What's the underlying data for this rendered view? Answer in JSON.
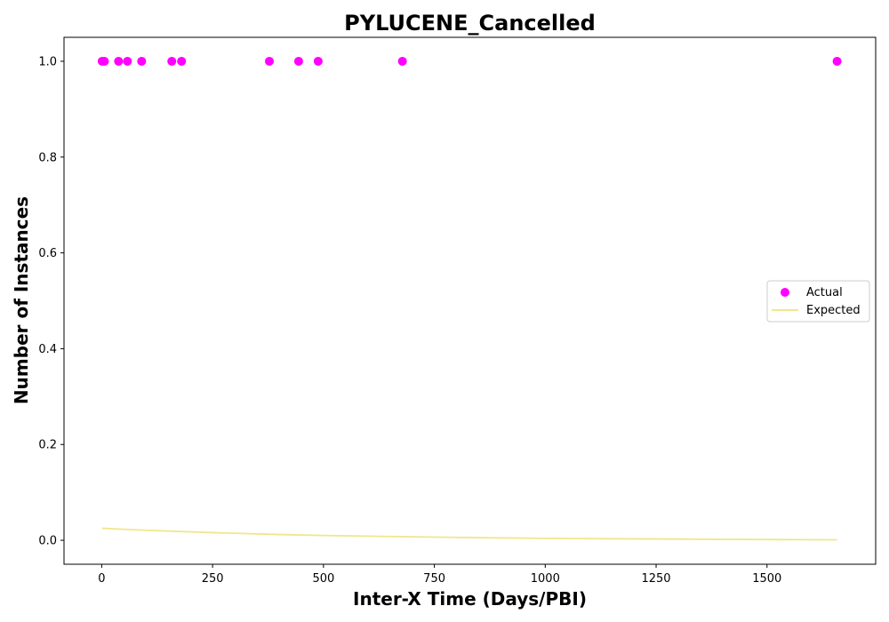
{
  "chart_data": {
    "type": "scatter",
    "title": "PYLUCENE_Cancelled",
    "xlabel": "Inter-X Time (Days/PBI)",
    "ylabel": "Number of Instances",
    "xlim": [
      -85,
      1745
    ],
    "ylim": [
      -0.05,
      1.05
    ],
    "xticks": [
      0,
      250,
      500,
      750,
      1000,
      1250,
      1500
    ],
    "yticks": [
      0.0,
      0.2,
      0.4,
      0.6,
      0.8,
      1.0
    ],
    "xtick_labels": [
      "0",
      "250",
      "500",
      "750",
      "1000",
      "1250",
      "1500"
    ],
    "ytick_labels": [
      "0.0",
      "0.2",
      "0.4",
      "0.6",
      "0.8",
      "1.0"
    ],
    "grid": false,
    "legend_position": "center-right",
    "series": [
      {
        "name": "Actual",
        "kind": "scatter",
        "color": "#ff00ff",
        "x": [
          1,
          6,
          38,
          58,
          90,
          158,
          180,
          378,
          444,
          488,
          678,
          1658
        ],
        "y": [
          1,
          1,
          1,
          1,
          1,
          1,
          1,
          1,
          1,
          1,
          1,
          1
        ]
      },
      {
        "name": "Expected",
        "kind": "line",
        "color": "#f0e68c",
        "x": [
          1,
          100,
          250,
          400,
          500,
          650,
          800,
          1000,
          1200,
          1400,
          1658
        ],
        "y": [
          0.025,
          0.021,
          0.016,
          0.012,
          0.01,
          0.008,
          0.006,
          0.004,
          0.003,
          0.002,
          0.001
        ]
      }
    ]
  }
}
